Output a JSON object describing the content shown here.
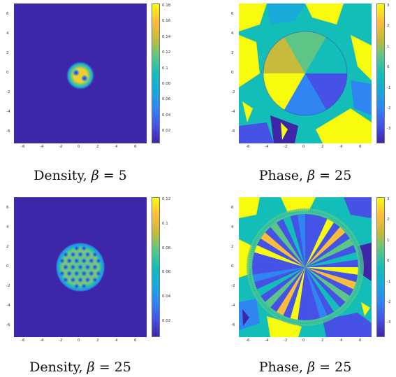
{
  "panels": [
    {
      "id": "density-beta5",
      "caption_prefix": "Density,",
      "caption_var": "β",
      "caption_eq": "= 5",
      "axis_ticks": [
        "-6",
        "-4",
        "-2",
        "0",
        "2",
        "4",
        "6"
      ],
      "colorbar_ticks": [
        "0.18",
        "0.16",
        "0.14",
        "0.12",
        "0.1",
        "0.08",
        "0.06",
        "0.04",
        "0.02"
      ]
    },
    {
      "id": "phase-beta25-top",
      "caption_prefix": "Phase,",
      "caption_var": "β",
      "caption_eq": "= 25",
      "axis_ticks": [
        "-6",
        "-4",
        "-2",
        "0",
        "2",
        "4",
        "6"
      ],
      "colorbar_ticks": [
        "3",
        "2",
        "1",
        "0",
        "-1",
        "-2",
        "-3"
      ]
    },
    {
      "id": "density-beta25",
      "caption_prefix": "Density,",
      "caption_var": "β",
      "caption_eq": "= 25",
      "axis_ticks": [
        "-6",
        "-4",
        "-2",
        "0",
        "2",
        "4",
        "6"
      ],
      "colorbar_ticks": [
        "0.12",
        "0.1",
        "0.08",
        "0.06",
        "0.04",
        "0.02"
      ]
    },
    {
      "id": "phase-beta25-bottom",
      "caption_prefix": "Phase,",
      "caption_var": "β",
      "caption_eq": "= 25",
      "axis_ticks": [
        "-6",
        "-4",
        "-2",
        "0",
        "2",
        "4",
        "6"
      ],
      "colorbar_ticks": [
        "3",
        "2",
        "1",
        "0",
        "-1",
        "-2",
        "-3"
      ]
    }
  ],
  "colors": {
    "parula_low": "#3e26a8",
    "parula_mid": "#13beb8",
    "parula_high": "#f9fb0e"
  }
}
